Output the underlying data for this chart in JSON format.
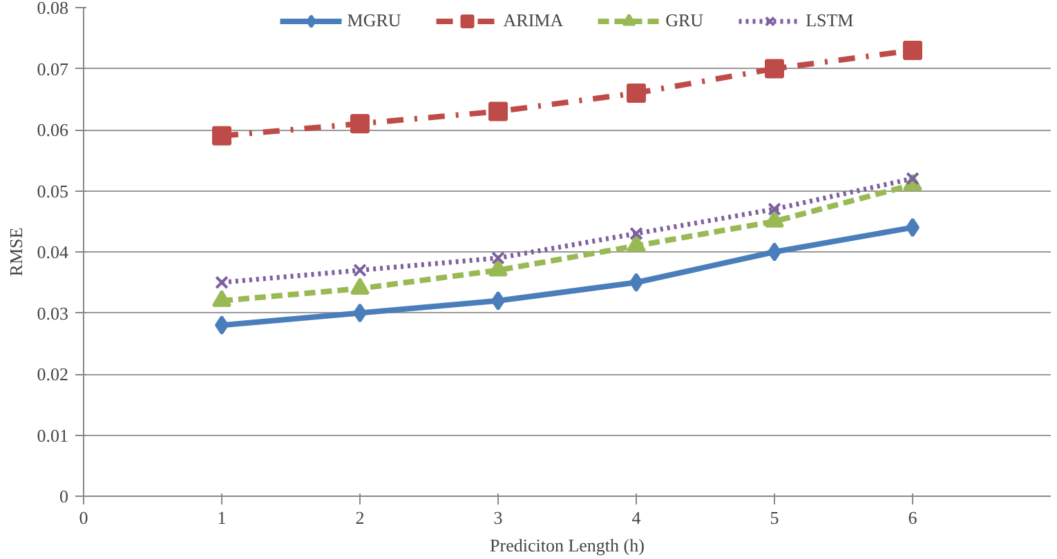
{
  "chart_data": {
    "type": "line",
    "xlabel": "Prediciton Length (h)",
    "ylabel": "RMSE",
    "x": [
      1,
      2,
      3,
      4,
      5,
      6
    ],
    "series": [
      {
        "name": "MGRU",
        "color": "#4a7ebb",
        "marker": "diamond",
        "line_style": "solid",
        "values": [
          0.028,
          0.03,
          0.032,
          0.035,
          0.04,
          0.044
        ]
      },
      {
        "name": "ARIMA",
        "color": "#be4b48",
        "marker": "square",
        "line_style": "dashdot",
        "values": [
          0.059,
          0.061,
          0.063,
          0.066,
          0.07,
          0.073
        ]
      },
      {
        "name": "GRU",
        "color": "#98b954",
        "marker": "triangle",
        "line_style": "dashed",
        "values": [
          0.032,
          0.034,
          0.037,
          0.041,
          0.045,
          0.051
        ]
      },
      {
        "name": "LSTM",
        "color": "#7d60a0",
        "marker": "cross",
        "line_style": "dotted",
        "values": [
          0.035,
          0.037,
          0.039,
          0.043,
          0.047,
          0.052
        ]
      }
    ],
    "xlim": [
      0,
      7
    ],
    "xticks": [
      0,
      1,
      2,
      3,
      4,
      5,
      6
    ],
    "ylim": [
      0,
      0.08
    ],
    "yticks": [
      0,
      0.01,
      0.02,
      0.03,
      0.04,
      0.05,
      0.06,
      0.07,
      0.08
    ],
    "grid": "y",
    "legend": "top"
  }
}
